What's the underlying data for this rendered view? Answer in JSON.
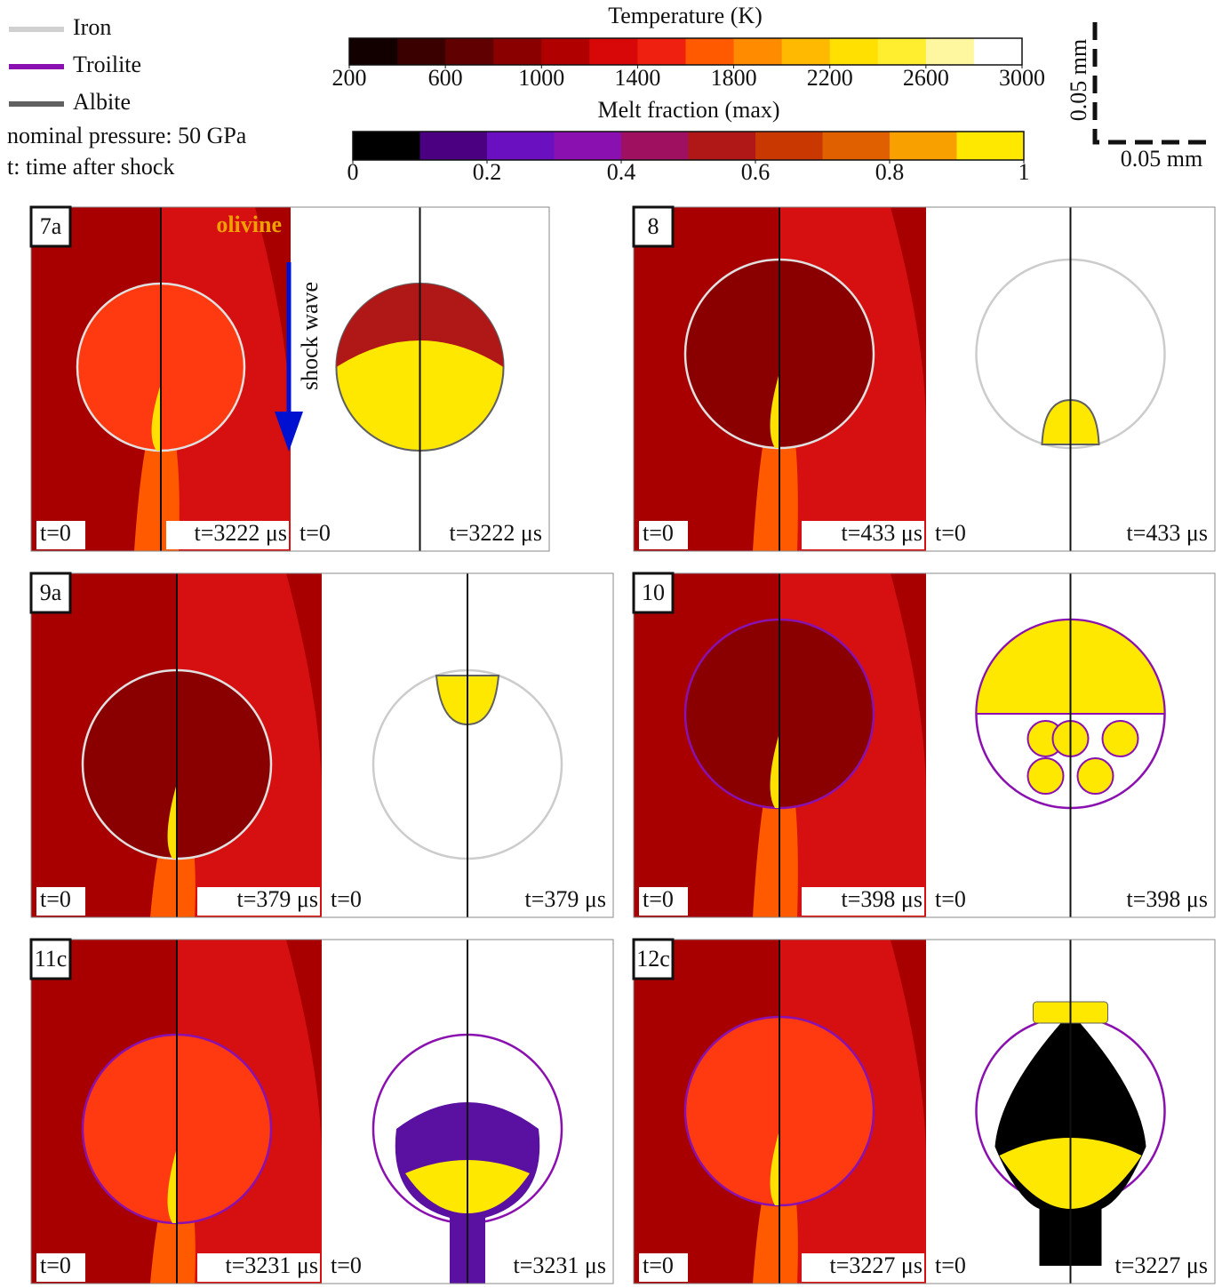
{
  "legend": [
    {
      "label": "Iron",
      "color": "#d0d0d0"
    },
    {
      "label": "Troilite",
      "color": "#8a10b0"
    },
    {
      "label": "Albite",
      "color": "#606060"
    }
  ],
  "notes": [
    "nominal pressure: 50 GPa",
    "t: time after shock"
  ],
  "colorbars": [
    {
      "title": "Temperature (K)",
      "range": [
        200,
        3000
      ],
      "ticks": [
        200,
        600,
        1000,
        1400,
        1800,
        2200,
        2600,
        3000
      ],
      "colors": [
        "#120000",
        "#3a0000",
        "#600000",
        "#8a0000",
        "#b00000",
        "#d80808",
        "#f02010",
        "#ff5a00",
        "#ff8c00",
        "#ffba00",
        "#ffe000",
        "#ffee30",
        "#fff7a0",
        "#ffffff"
      ]
    },
    {
      "title": "Melt fraction (max)",
      "range": [
        0,
        1
      ],
      "ticks": [
        0,
        0.2,
        0.4,
        0.6,
        0.8,
        1
      ],
      "colors": [
        "#000000",
        "#4a0080",
        "#6a10c0",
        "#8a10b0",
        "#a01060",
        "#b01818",
        "#c83800",
        "#e06000",
        "#f8a000",
        "#ffe800"
      ]
    }
  ],
  "scale_bar": {
    "vertical": "0.05 mm",
    "horizontal": "0.05 mm"
  },
  "panels": [
    {
      "label": "7a",
      "left_time": "t=0",
      "right_time": "t=3222 μs",
      "melt_left_time": "t=0",
      "melt_right_time": "t=3222 μs",
      "annotation": "olivine",
      "arrow_label": "shock wave"
    },
    {
      "label": "8",
      "left_time": "t=0",
      "right_time": "t=433 μs",
      "melt_left_time": "t=0",
      "melt_right_time": "t=433 μs"
    },
    {
      "label": "9a",
      "left_time": "t=0",
      "right_time": "t=379 μs",
      "melt_left_time": "t=0",
      "melt_right_time": "t=379 μs"
    },
    {
      "label": "10",
      "left_time": "t=0",
      "right_time": "t=398 μs",
      "melt_left_time": "t=0",
      "melt_right_time": "t=398 μs"
    },
    {
      "label": "11c",
      "left_time": "t=0",
      "right_time": "t=3231 μs",
      "melt_left_time": "t=0",
      "melt_right_time": "t=3231 μs"
    },
    {
      "label": "12c",
      "left_time": "t=0",
      "right_time": "t=3227 μs",
      "melt_left_time": "t=0",
      "melt_right_time": "t=3227 μs"
    }
  ]
}
